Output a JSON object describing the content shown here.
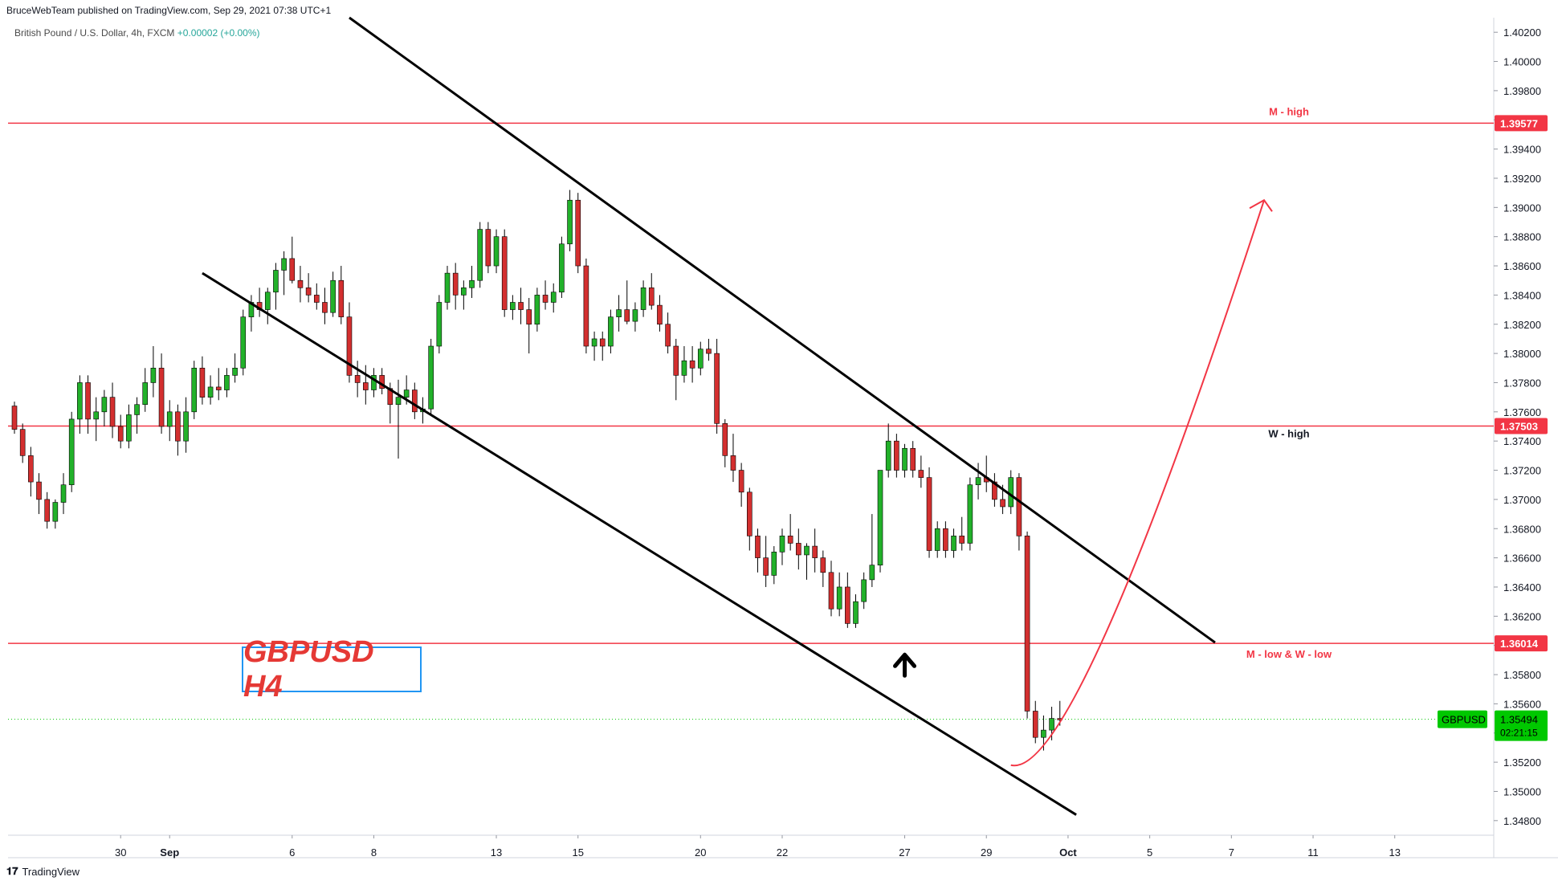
{
  "header": {
    "published": "BruceWebTeam published on TradingView.com, Sep 29, 2021 07:38 UTC+1",
    "symbol_desc": "British Pound / U.S. Dollar, 4h, FXCM",
    "change": "+0.00002 (+0.00%)"
  },
  "footer": {
    "brand": "TradingView",
    "logo_glyph": "𝟏𝟕"
  },
  "badge": {
    "text": "GBPUSD H4"
  },
  "colors": {
    "up": "#22b12a",
    "down": "#d32f2f",
    "level": "#f23645",
    "channel": "#000000",
    "grid": "#e0e3eb",
    "price_tag": "#00c800"
  },
  "chart_data": {
    "type": "candlestick",
    "timeframe": "4h",
    "y_axis": {
      "ylim": [
        1.347,
        1.403
      ],
      "ticks": [
        "1.34800",
        "1.35000",
        "1.35200",
        "1.35400",
        "1.35600",
        "1.35800",
        "1.36000",
        "1.36200",
        "1.36400",
        "1.36600",
        "1.36800",
        "1.37000",
        "1.37200",
        "1.37400",
        "1.37600",
        "1.37800",
        "1.38000",
        "1.38200",
        "1.38400",
        "1.38600",
        "1.38800",
        "1.39000",
        "1.39200",
        "1.39400",
        "1.39600",
        "1.39800",
        "1.40000",
        "1.40200"
      ]
    },
    "x_axis": {
      "ticks": [
        {
          "label": "30",
          "bar": 13
        },
        {
          "label": "Sep",
          "bar": 19
        },
        {
          "label": "6",
          "bar": 34
        },
        {
          "label": "8",
          "bar": 44
        },
        {
          "label": "13",
          "bar": 59
        },
        {
          "label": "15",
          "bar": 69
        },
        {
          "label": "20",
          "bar": 84
        },
        {
          "label": "22",
          "bar": 94
        },
        {
          "label": "27",
          "bar": 109
        },
        {
          "label": "29",
          "bar": 119
        },
        {
          "label": "Oct",
          "bar": 129
        },
        {
          "label": "5",
          "bar": 139
        },
        {
          "label": "7",
          "bar": 149
        },
        {
          "label": "11",
          "bar": 159
        },
        {
          "label": "13",
          "bar": 169
        }
      ],
      "bars_total": 182
    },
    "candles": [
      [
        1.3764,
        1.3767,
        1.3745,
        1.3748
      ],
      [
        1.3748,
        1.3752,
        1.3725,
        1.373
      ],
      [
        1.373,
        1.3736,
        1.3702,
        1.3712
      ],
      [
        1.3712,
        1.3718,
        1.369,
        1.37
      ],
      [
        1.37,
        1.3705,
        1.368,
        1.3685
      ],
      [
        1.3685,
        1.37,
        1.368,
        1.3698
      ],
      [
        1.3698,
        1.3718,
        1.369,
        1.371
      ],
      [
        1.371,
        1.376,
        1.3705,
        1.3755
      ],
      [
        1.3755,
        1.3785,
        1.3745,
        1.378
      ],
      [
        1.378,
        1.3785,
        1.3745,
        1.3755
      ],
      [
        1.3755,
        1.377,
        1.374,
        1.376
      ],
      [
        1.376,
        1.3775,
        1.375,
        1.377
      ],
      [
        1.377,
        1.378,
        1.3742,
        1.375
      ],
      [
        1.375,
        1.3758,
        1.3735,
        1.374
      ],
      [
        1.374,
        1.3765,
        1.3735,
        1.3758
      ],
      [
        1.3758,
        1.377,
        1.3745,
        1.3765
      ],
      [
        1.3765,
        1.379,
        1.376,
        1.378
      ],
      [
        1.378,
        1.3805,
        1.377,
        1.379
      ],
      [
        1.379,
        1.38,
        1.3745,
        1.375
      ],
      [
        1.375,
        1.3768,
        1.374,
        1.376
      ],
      [
        1.376,
        1.3765,
        1.373,
        1.374
      ],
      [
        1.374,
        1.377,
        1.3732,
        1.376
      ],
      [
        1.376,
        1.3795,
        1.3755,
        1.379
      ],
      [
        1.379,
        1.3798,
        1.3765,
        1.377
      ],
      [
        1.377,
        1.3785,
        1.3765,
        1.3777
      ],
      [
        1.3777,
        1.379,
        1.3768,
        1.3775
      ],
      [
        1.3775,
        1.379,
        1.377,
        1.3785
      ],
      [
        1.3785,
        1.38,
        1.378,
        1.379
      ],
      [
        1.379,
        1.383,
        1.3785,
        1.3825
      ],
      [
        1.3825,
        1.384,
        1.3815,
        1.3835
      ],
      [
        1.3835,
        1.3845,
        1.3825,
        1.383
      ],
      [
        1.383,
        1.3845,
        1.382,
        1.3842
      ],
      [
        1.3842,
        1.3862,
        1.383,
        1.3857
      ],
      [
        1.3857,
        1.387,
        1.384,
        1.3865
      ],
      [
        1.3865,
        1.388,
        1.3848,
        1.385
      ],
      [
        1.385,
        1.386,
        1.3835,
        1.3845
      ],
      [
        1.3845,
        1.3855,
        1.3835,
        1.384
      ],
      [
        1.384,
        1.3848,
        1.383,
        1.3835
      ],
      [
        1.3835,
        1.3845,
        1.382,
        1.3828
      ],
      [
        1.3828,
        1.3856,
        1.3825,
        1.385
      ],
      [
        1.385,
        1.386,
        1.382,
        1.3825
      ],
      [
        1.3825,
        1.3835,
        1.378,
        1.3785
      ],
      [
        1.3785,
        1.3795,
        1.377,
        1.378
      ],
      [
        1.378,
        1.3792,
        1.3765,
        1.3775
      ],
      [
        1.3775,
        1.379,
        1.377,
        1.3785
      ],
      [
        1.3785,
        1.379,
        1.3772,
        1.3776
      ],
      [
        1.3776,
        1.378,
        1.3752,
        1.3765
      ],
      [
        1.3765,
        1.3782,
        1.3728,
        1.377
      ],
      [
        1.377,
        1.3785,
        1.3765,
        1.3775
      ],
      [
        1.3775,
        1.378,
        1.3755,
        1.376
      ],
      [
        1.376,
        1.377,
        1.3752,
        1.3762
      ],
      [
        1.3762,
        1.381,
        1.3758,
        1.3805
      ],
      [
        1.3805,
        1.384,
        1.38,
        1.3835
      ],
      [
        1.3835,
        1.386,
        1.383,
        1.3855
      ],
      [
        1.3855,
        1.3862,
        1.383,
        1.384
      ],
      [
        1.384,
        1.385,
        1.383,
        1.3845
      ],
      [
        1.3845,
        1.386,
        1.3838,
        1.385
      ],
      [
        1.385,
        1.389,
        1.3845,
        1.3885
      ],
      [
        1.3885,
        1.389,
        1.3855,
        1.386
      ],
      [
        1.386,
        1.3885,
        1.3855,
        1.388
      ],
      [
        1.388,
        1.3885,
        1.3825,
        1.383
      ],
      [
        1.383,
        1.384,
        1.3823,
        1.3835
      ],
      [
        1.3835,
        1.3845,
        1.382,
        1.383
      ],
      [
        1.383,
        1.3838,
        1.38,
        1.382
      ],
      [
        1.382,
        1.3845,
        1.3815,
        1.384
      ],
      [
        1.384,
        1.385,
        1.383,
        1.3835
      ],
      [
        1.3835,
        1.3848,
        1.3828,
        1.3842
      ],
      [
        1.3842,
        1.388,
        1.3838,
        1.3875
      ],
      [
        1.3875,
        1.3912,
        1.387,
        1.3905
      ],
      [
        1.3905,
        1.391,
        1.3855,
        1.386
      ],
      [
        1.386,
        1.3865,
        1.38,
        1.3805
      ],
      [
        1.3805,
        1.3815,
        1.3795,
        1.381
      ],
      [
        1.381,
        1.3815,
        1.3795,
        1.3805
      ],
      [
        1.3805,
        1.383,
        1.38,
        1.3825
      ],
      [
        1.3825,
        1.384,
        1.3815,
        1.383
      ],
      [
        1.383,
        1.385,
        1.382,
        1.3822
      ],
      [
        1.3822,
        1.3835,
        1.3815,
        1.383
      ],
      [
        1.383,
        1.385,
        1.3825,
        1.3845
      ],
      [
        1.3845,
        1.3855,
        1.383,
        1.3833
      ],
      [
        1.3833,
        1.384,
        1.3815,
        1.382
      ],
      [
        1.382,
        1.3828,
        1.38,
        1.3805
      ],
      [
        1.3805,
        1.381,
        1.3768,
        1.3785
      ],
      [
        1.3785,
        1.3805,
        1.378,
        1.3795
      ],
      [
        1.3795,
        1.3805,
        1.378,
        1.379
      ],
      [
        1.379,
        1.3808,
        1.3785,
        1.3803
      ],
      [
        1.3803,
        1.381,
        1.3795,
        1.38
      ],
      [
        1.38,
        1.381,
        1.3745,
        1.3752
      ],
      [
        1.3752,
        1.3755,
        1.3722,
        1.373
      ],
      [
        1.373,
        1.3745,
        1.3712,
        1.372
      ],
      [
        1.372,
        1.3725,
        1.3695,
        1.3705
      ],
      [
        1.3705,
        1.3708,
        1.3665,
        1.3675
      ],
      [
        1.3675,
        1.368,
        1.365,
        1.366
      ],
      [
        1.366,
        1.3675,
        1.364,
        1.3648
      ],
      [
        1.3648,
        1.3668,
        1.3642,
        1.3664
      ],
      [
        1.3664,
        1.368,
        1.3655,
        1.3675
      ],
      [
        1.3675,
        1.369,
        1.3665,
        1.367
      ],
      [
        1.367,
        1.368,
        1.3652,
        1.3662
      ],
      [
        1.3662,
        1.367,
        1.3645,
        1.3668
      ],
      [
        1.3668,
        1.368,
        1.365,
        1.366
      ],
      [
        1.366,
        1.3665,
        1.364,
        1.365
      ],
      [
        1.365,
        1.3658,
        1.362,
        1.3625
      ],
      [
        1.3625,
        1.365,
        1.362,
        1.364
      ],
      [
        1.364,
        1.365,
        1.3612,
        1.3615
      ],
      [
        1.3615,
        1.3635,
        1.3612,
        1.363
      ],
      [
        1.363,
        1.365,
        1.3625,
        1.3645
      ],
      [
        1.3645,
        1.369,
        1.364,
        1.3655
      ],
      [
        1.3655,
        1.372,
        1.365,
        1.372
      ],
      [
        1.372,
        1.3752,
        1.3715,
        1.374
      ],
      [
        1.374,
        1.3745,
        1.3715,
        1.372
      ],
      [
        1.372,
        1.3738,
        1.3715,
        1.3735
      ],
      [
        1.3735,
        1.374,
        1.3715,
        1.372
      ],
      [
        1.372,
        1.373,
        1.3708,
        1.3715
      ],
      [
        1.3715,
        1.3722,
        1.366,
        1.3665
      ],
      [
        1.3665,
        1.3685,
        1.366,
        1.368
      ],
      [
        1.368,
        1.3685,
        1.366,
        1.3665
      ],
      [
        1.3665,
        1.368,
        1.366,
        1.3675
      ],
      [
        1.3675,
        1.3688,
        1.3665,
        1.367
      ],
      [
        1.367,
        1.3715,
        1.3665,
        1.371
      ],
      [
        1.371,
        1.3725,
        1.37,
        1.3715
      ],
      [
        1.3715,
        1.373,
        1.3705,
        1.3712
      ],
      [
        1.3712,
        1.3718,
        1.3695,
        1.37
      ],
      [
        1.37,
        1.371,
        1.369,
        1.3695
      ],
      [
        1.3695,
        1.372,
        1.369,
        1.3715
      ],
      [
        1.3715,
        1.3718,
        1.3665,
        1.3675
      ],
      [
        1.3675,
        1.3678,
        1.355,
        1.3555
      ],
      [
        1.3555,
        1.3562,
        1.3533,
        1.3537
      ],
      [
        1.3537,
        1.3552,
        1.3528,
        1.3542
      ],
      [
        1.3542,
        1.3558,
        1.3535,
        1.355
      ],
      [
        1.355,
        1.3562,
        1.3545,
        1.3549
      ]
    ],
    "levels": [
      {
        "price": 1.39577,
        "label": "M - high",
        "color": "#f23645",
        "label_color": "#f23645",
        "tag": "1.39577"
      },
      {
        "price": 1.37503,
        "label": "W - high",
        "color": "#f23645",
        "label_color": "#131722",
        "tag": "1.37503"
      },
      {
        "price": 1.36014,
        "label": "M - low & W - low",
        "color": "#f23645",
        "label_color": "#f23645",
        "tag": "1.36014"
      }
    ],
    "current_price": {
      "price": 1.35494,
      "tag": "1.35494",
      "countdown": "02:21:15",
      "symbol": "GBPUSD"
    },
    "channel_upper": [
      [
        41,
        1.403
      ],
      [
        147,
        1.3602
      ]
    ],
    "channel_lower": [
      [
        23,
        1.3855
      ],
      [
        130,
        1.3484
      ]
    ],
    "projection": {
      "from": [
        122,
        1.3518
      ],
      "to": [
        153,
        1.3905
      ]
    },
    "up_arrow": {
      "bar": 109,
      "price": 1.3587
    }
  }
}
